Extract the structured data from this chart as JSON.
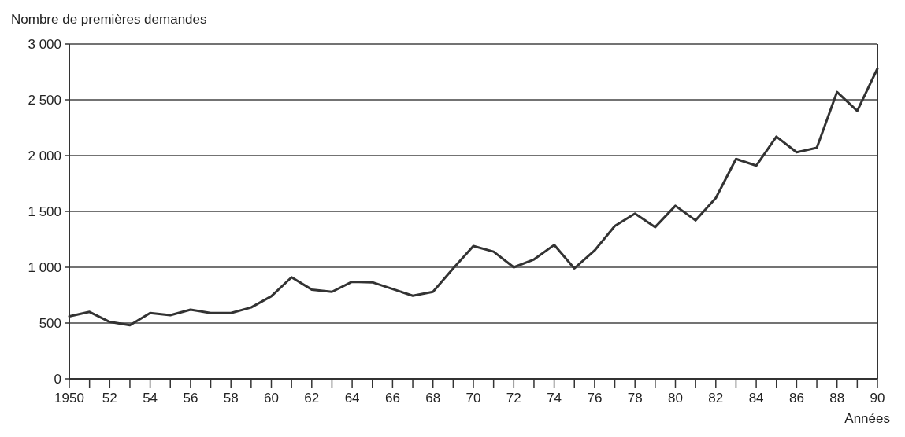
{
  "chart_data": {
    "type": "line",
    "ylabel": "Nombre de premières demandes",
    "xlabel": "Années",
    "x": [
      1950,
      1951,
      1952,
      1953,
      1954,
      1955,
      1956,
      1957,
      1958,
      1959,
      1960,
      1961,
      1962,
      1963,
      1964,
      1965,
      1966,
      1967,
      1968,
      1969,
      1970,
      1971,
      1972,
      1973,
      1974,
      1975,
      1976,
      1977,
      1978,
      1979,
      1980,
      1981,
      1982,
      1983,
      1984,
      1985,
      1986,
      1987,
      1988,
      1989,
      1990
    ],
    "series": [
      {
        "color": "#333333",
        "values": [
          560,
          600,
          510,
          480,
          590,
          570,
          620,
          590,
          590,
          640,
          740,
          910,
          800,
          780,
          870,
          865,
          805,
          745,
          780,
          990,
          1190,
          1140,
          1000,
          1070,
          1200,
          990,
          1150,
          1370,
          1480,
          1360,
          1550,
          1420,
          1620,
          1970,
          1910,
          2170,
          2030,
          2070,
          2570,
          2400,
          2780
        ]
      }
    ],
    "xlim": [
      1950,
      1990
    ],
    "ylim": [
      0,
      3000
    ],
    "xticks": [
      {
        "value": 1950,
        "label": "1950"
      },
      {
        "value": 1951,
        "label": null
      },
      {
        "value": 1952,
        "label": "52"
      },
      {
        "value": 1953,
        "label": null
      },
      {
        "value": 1954,
        "label": "54"
      },
      {
        "value": 1955,
        "label": null
      },
      {
        "value": 1956,
        "label": "56"
      },
      {
        "value": 1957,
        "label": null
      },
      {
        "value": 1958,
        "label": "58"
      },
      {
        "value": 1959,
        "label": null
      },
      {
        "value": 1960,
        "label": "60"
      },
      {
        "value": 1961,
        "label": null
      },
      {
        "value": 1962,
        "label": "62"
      },
      {
        "value": 1963,
        "label": null
      },
      {
        "value": 1964,
        "label": "64"
      },
      {
        "value": 1965,
        "label": null
      },
      {
        "value": 1966,
        "label": "66"
      },
      {
        "value": 1967,
        "label": null
      },
      {
        "value": 1968,
        "label": "68"
      },
      {
        "value": 1969,
        "label": null
      },
      {
        "value": 1970,
        "label": "70"
      },
      {
        "value": 1971,
        "label": null
      },
      {
        "value": 1972,
        "label": "72"
      },
      {
        "value": 1973,
        "label": null
      },
      {
        "value": 1974,
        "label": "74"
      },
      {
        "value": 1975,
        "label": null
      },
      {
        "value": 1976,
        "label": "76"
      },
      {
        "value": 1977,
        "label": null
      },
      {
        "value": 1978,
        "label": "78"
      },
      {
        "value": 1979,
        "label": null
      },
      {
        "value": 1980,
        "label": "80"
      },
      {
        "value": 1981,
        "label": null
      },
      {
        "value": 1982,
        "label": "82"
      },
      {
        "value": 1983,
        "label": null
      },
      {
        "value": 1984,
        "label": "84"
      },
      {
        "value": 1985,
        "label": null
      },
      {
        "value": 1986,
        "label": "86"
      },
      {
        "value": 1987,
        "label": null
      },
      {
        "value": 1988,
        "label": "88"
      },
      {
        "value": 1989,
        "label": null
      },
      {
        "value": 1990,
        "label": "90"
      }
    ],
    "yticks": [
      0,
      500,
      {
        "value": 1000,
        "label": "1 000"
      },
      {
        "value": 1500,
        "label": "1 500"
      },
      {
        "value": 2000,
        "label": "2 000"
      },
      {
        "value": 2500,
        "label": "2 500"
      },
      {
        "value": 3000,
        "label": "3 000"
      }
    ],
    "grid": "y",
    "marker": "none",
    "line_style": "solid"
  }
}
